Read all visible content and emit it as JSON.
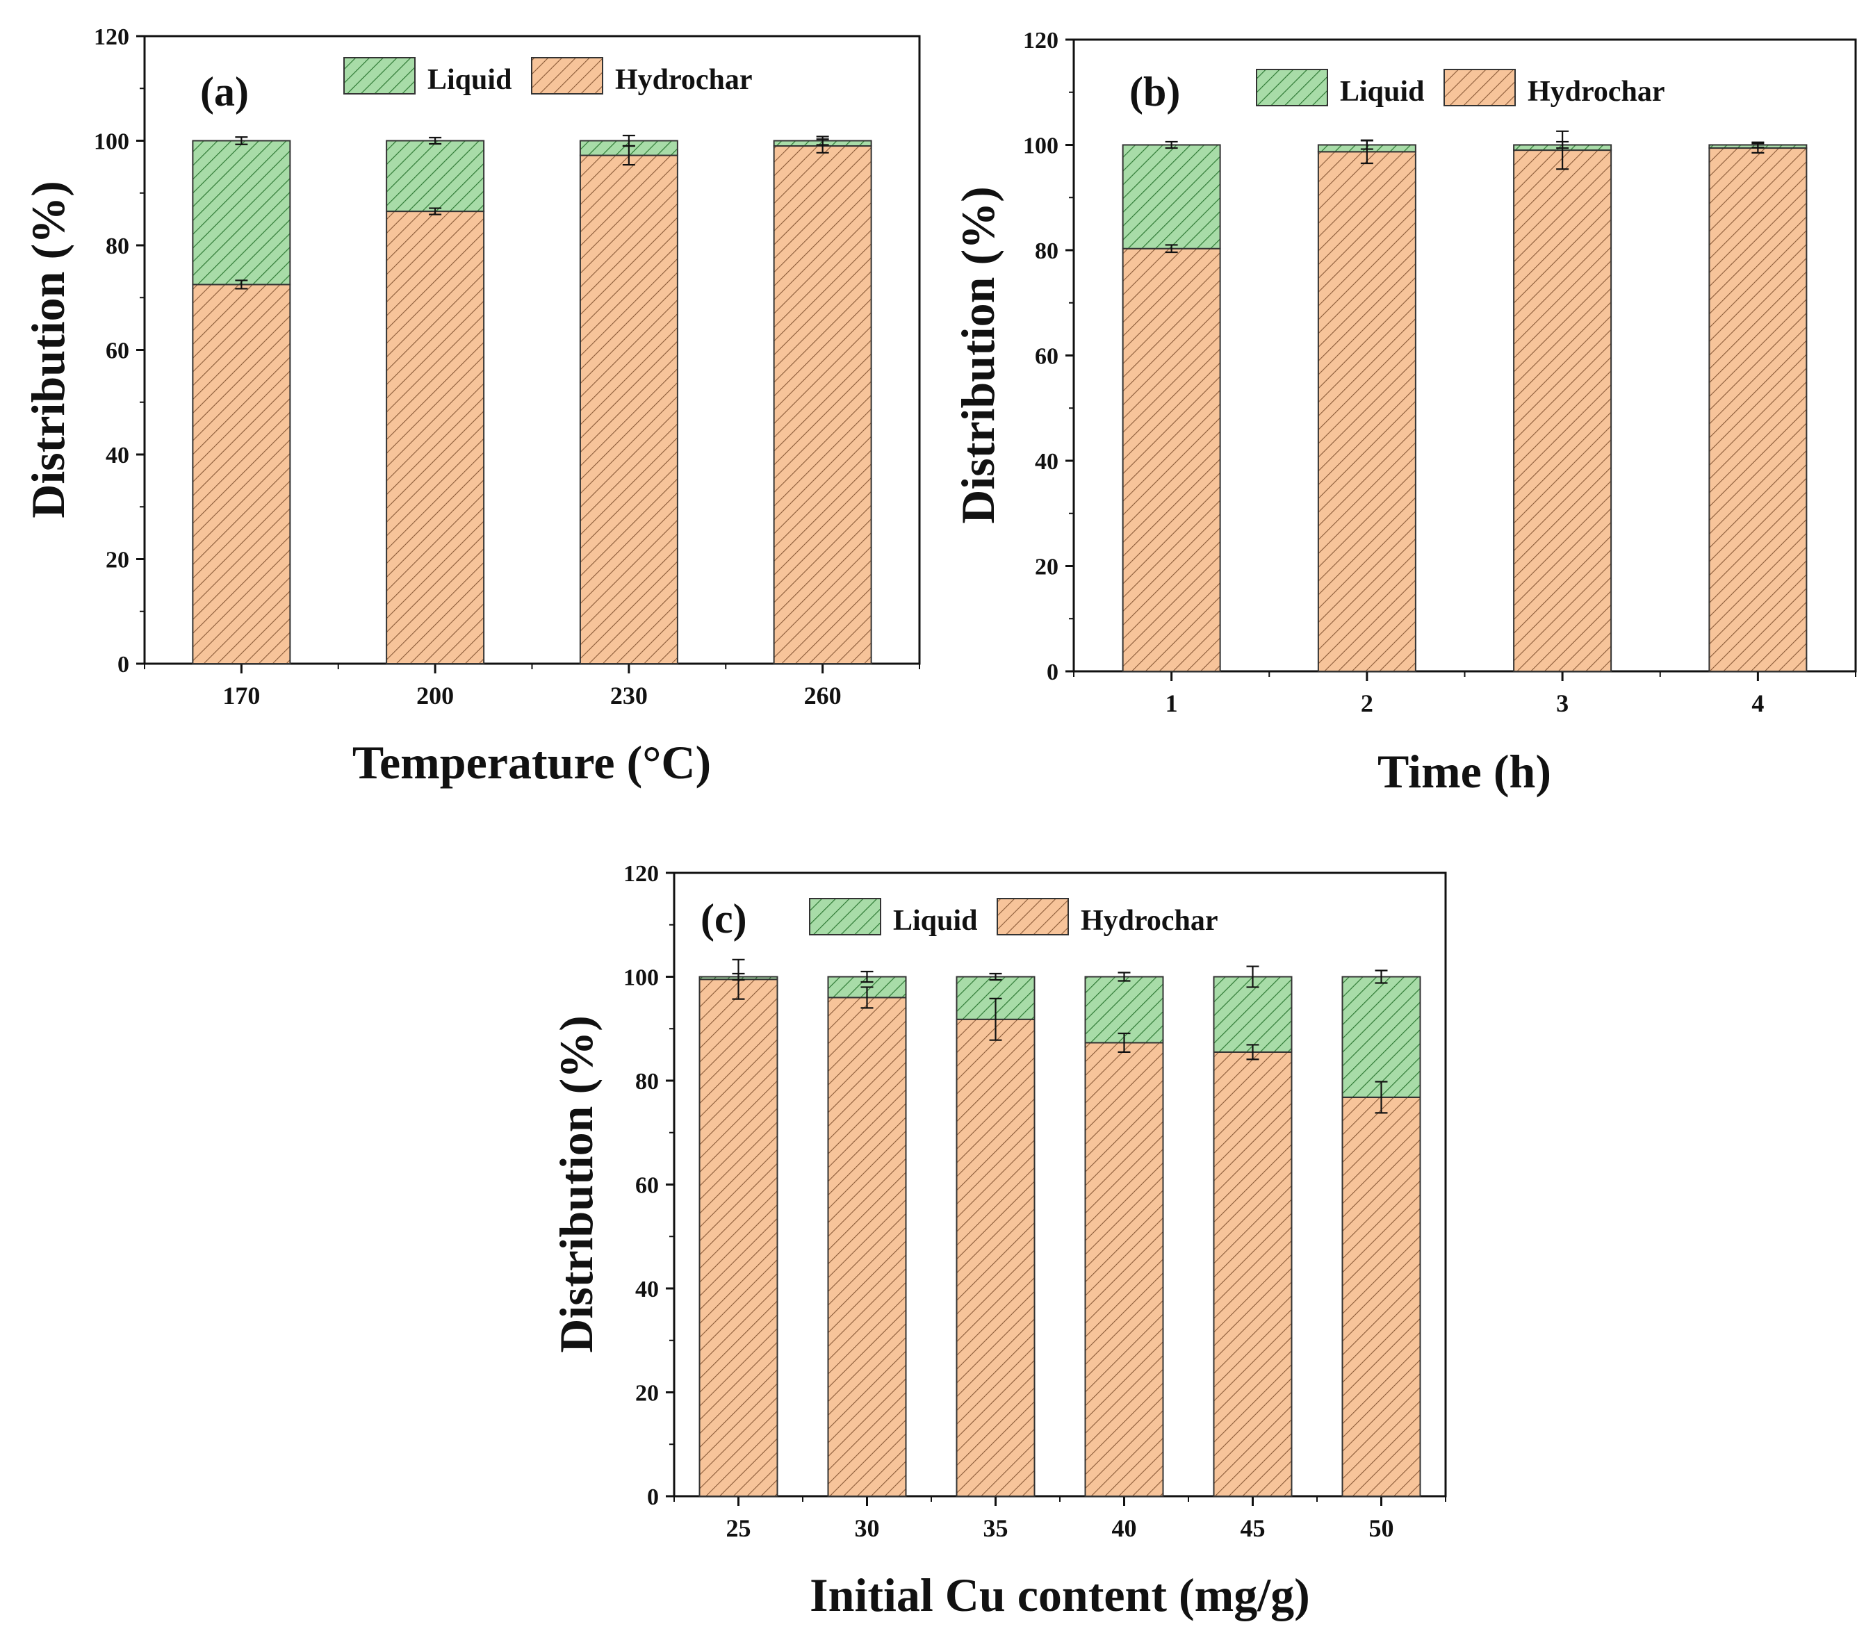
{
  "colors": {
    "liquid_fill": "#a8dca8",
    "liquid_hatch": "#2f7a35",
    "hydrochar_fill": "#f7c49a",
    "hydrochar_hatch": "#8a5a38",
    "axis": "#111111"
  },
  "chart_data": [
    {
      "type": "bar",
      "stacked": true,
      "panel_label": "(a)",
      "xlabel": "Temperature (°C)",
      "ylabel": "Distribution (%)",
      "ylim": [
        0,
        120
      ],
      "yticks": [
        0,
        20,
        40,
        60,
        80,
        100,
        120
      ],
      "categories": [
        "170",
        "200",
        "230",
        "260"
      ],
      "legend": [
        "Liquid",
        "Hydrochar"
      ],
      "series": [
        {
          "name": "Hydrochar",
          "values": [
            72.5,
            86.5,
            97.2,
            99.0
          ],
          "errors": [
            0.8,
            0.6,
            1.8,
            1.3
          ]
        },
        {
          "name": "Liquid",
          "values": [
            27.5,
            13.5,
            2.8,
            1.0
          ],
          "errors": [
            0.7,
            0.6,
            1.0,
            0.8
          ]
        }
      ]
    },
    {
      "type": "bar",
      "stacked": true,
      "panel_label": "(b)",
      "xlabel": "Time (h)",
      "ylabel": "Distribution (%)",
      "ylim": [
        0,
        120
      ],
      "yticks": [
        0,
        20,
        40,
        60,
        80,
        100,
        120
      ],
      "categories": [
        "1",
        "2",
        "3",
        "4"
      ],
      "legend": [
        "Liquid",
        "Hydrochar"
      ],
      "series": [
        {
          "name": "Hydrochar",
          "values": [
            80.3,
            98.7,
            99.0,
            99.4
          ],
          "errors": [
            0.7,
            2.2,
            3.6,
            0.9
          ]
        },
        {
          "name": "Liquid",
          "values": [
            19.7,
            1.3,
            1.0,
            0.6
          ],
          "errors": [
            0.6,
            0.8,
            0.6,
            0.5
          ]
        }
      ]
    },
    {
      "type": "bar",
      "stacked": true,
      "panel_label": "(c)",
      "xlabel": "Initial Cu content (mg/g)",
      "ylabel": "Distribution (%)",
      "ylim": [
        0,
        120
      ],
      "yticks": [
        0,
        20,
        40,
        60,
        80,
        100,
        120
      ],
      "categories": [
        "25",
        "30",
        "35",
        "40",
        "45",
        "50"
      ],
      "legend": [
        "Liquid",
        "Hydrochar"
      ],
      "series": [
        {
          "name": "Hydrochar",
          "values": [
            99.5,
            96.0,
            91.8,
            87.3,
            85.5,
            76.8
          ],
          "errors": [
            3.8,
            2.0,
            4.0,
            1.8,
            1.4,
            3.0
          ]
        },
        {
          "name": "Liquid",
          "values": [
            0.5,
            4.0,
            8.2,
            12.7,
            14.5,
            23.2
          ],
          "errors": [
            0.6,
            1.0,
            0.6,
            0.8,
            2.0,
            1.2
          ]
        }
      ]
    }
  ]
}
